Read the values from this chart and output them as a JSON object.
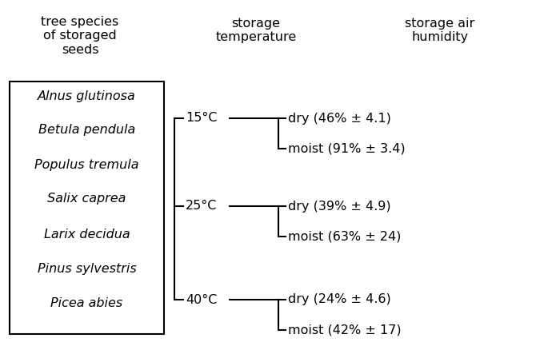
{
  "header_col1": "tree species\nof storaged\nseeds",
  "header_col2": "storage\ntemperature",
  "header_col3": "storage air\nhumidity",
  "species": [
    "Alnus glutinosa",
    "Betula pendula",
    "Populus tremula",
    "Salix caprea",
    "Larix decidua",
    "Pinus sylvestris",
    "Picea abies"
  ],
  "temperatures": [
    "15°C",
    "25°C",
    "40°C"
  ],
  "humidity_labels": [
    [
      "dry (46% ± 4.1)",
      "moist (91% ± 3.4)"
    ],
    [
      "dry (39% ± 4.9)",
      "moist (63% ± 24)"
    ],
    [
      "dry (24% ± 4.6)",
      "moist (42% ± 17)"
    ]
  ],
  "bg_color": "#ffffff",
  "text_color": "#000000",
  "line_color": "#000000",
  "font_size_header": 11.5,
  "font_size_species": 11.5,
  "font_size_temp": 11.5,
  "font_size_humidity": 11.5,
  "fig_width": 6.85,
  "fig_height": 4.33
}
